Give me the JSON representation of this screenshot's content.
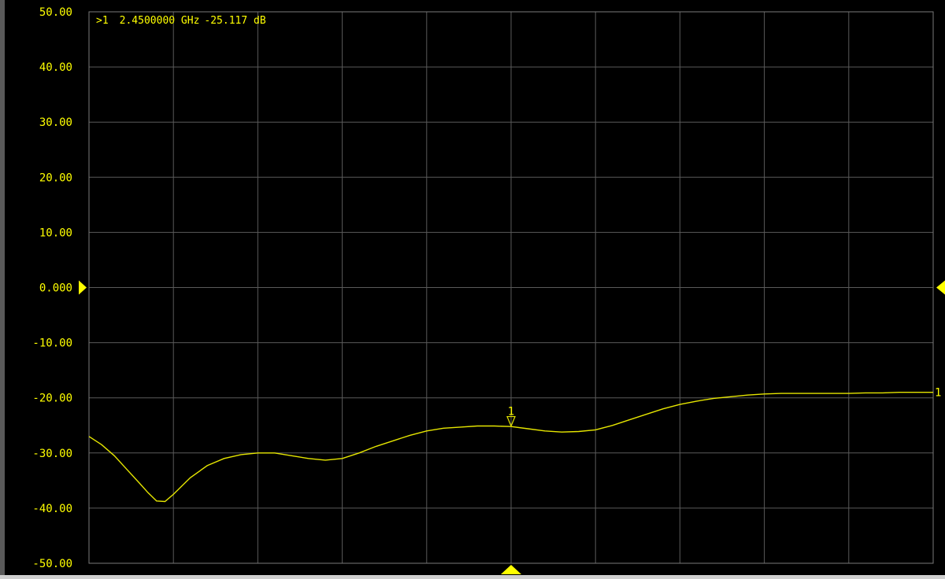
{
  "colors": {
    "background": "#000000",
    "grid": "#5a5a5a",
    "frame": "#7a7a7a",
    "trace": "#e6e600",
    "text": "#ffff00"
  },
  "marker_readout": {
    "prefix": ">1",
    "frequency": "2.4500000 GHz",
    "value": "-25.117 dB"
  },
  "trace_end_label": "1",
  "chart_data": {
    "type": "line",
    "title": "",
    "xlabel": "",
    "ylabel": "",
    "ylim": [
      -50,
      50
    ],
    "y_ticks": [
      {
        "value": 50,
        "label": "50.00"
      },
      {
        "value": 40,
        "label": "40.00"
      },
      {
        "value": 30,
        "label": "30.00"
      },
      {
        "value": 20,
        "label": "20.00"
      },
      {
        "value": 10,
        "label": "10.00"
      },
      {
        "value": 0,
        "label": "0.000"
      },
      {
        "value": -10,
        "label": "-10.00"
      },
      {
        "value": -20,
        "label": "-20.00"
      },
      {
        "value": -30,
        "label": "-30.00"
      },
      {
        "value": -40,
        "label": "-40.00"
      },
      {
        "value": -50,
        "label": "-50.00"
      }
    ],
    "reference_level": 0,
    "x_divisions": 10,
    "grid": true,
    "marker": {
      "label": "1",
      "division": 5,
      "value": -25.117
    },
    "series": [
      {
        "x_division": [
          0,
          0.15,
          0.3,
          0.45,
          0.6,
          0.7,
          0.8,
          0.9,
          1.0,
          1.2,
          1.4,
          1.6,
          1.8,
          2.0,
          2.2,
          2.4,
          2.6,
          2.8,
          3.0,
          3.2,
          3.4,
          3.6,
          3.8,
          4.0,
          4.2,
          4.4,
          4.6,
          4.8,
          5.0,
          5.2,
          5.4,
          5.6,
          5.8,
          6.0,
          6.2,
          6.4,
          6.6,
          6.8,
          7.0,
          7.2,
          7.4,
          7.6,
          7.8,
          8.0,
          8.2,
          8.4,
          8.6,
          8.8,
          9.0,
          9.2,
          9.4,
          9.6,
          9.8,
          10.0
        ],
        "values": [
          -27.0,
          -28.5,
          -30.5,
          -33.0,
          -35.5,
          -37.2,
          -38.7,
          -38.8,
          -37.5,
          -34.5,
          -32.3,
          -31.0,
          -30.3,
          -30.0,
          -30.0,
          -30.5,
          -31.0,
          -31.3,
          -31.0,
          -30.0,
          -28.8,
          -27.8,
          -26.8,
          -26.0,
          -25.5,
          -25.3,
          -25.1,
          -25.1,
          -25.2,
          -25.6,
          -26.0,
          -26.2,
          -26.1,
          -25.8,
          -25.0,
          -24.0,
          -23.0,
          -22.0,
          -21.2,
          -20.6,
          -20.1,
          -19.8,
          -19.5,
          -19.3,
          -19.2,
          -19.2,
          -19.2,
          -19.2,
          -19.2,
          -19.1,
          -19.1,
          -19.0,
          -19.0,
          -19.0
        ]
      }
    ]
  }
}
